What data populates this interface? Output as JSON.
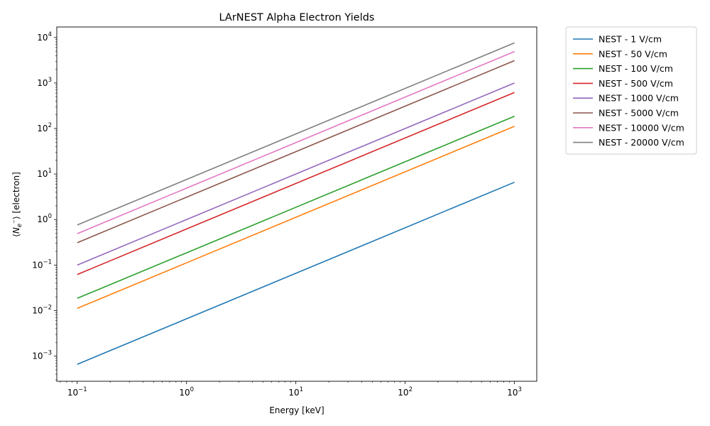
{
  "chart_data": {
    "type": "line",
    "title": "LArNEST Alpha Electron Yields",
    "xlabel": "Energy [keV]",
    "ylabel": "⟨N_e⁻⟩ [electron]",
    "ylabel_parts": {
      "open": "⟨",
      "sym": "N",
      "sub": "e",
      "sup": "−",
      "close": "⟩ [electron]"
    },
    "xscale": "log",
    "yscale": "log",
    "xlim": [
      0.065,
      1600
    ],
    "ylim": [
      0.00028,
      17000
    ],
    "x_ticks": [
      {
        "value": 0.1,
        "base": "10",
        "exp": "−1"
      },
      {
        "value": 1,
        "base": "10",
        "exp": "0"
      },
      {
        "value": 10,
        "base": "10",
        "exp": "1"
      },
      {
        "value": 100,
        "base": "10",
        "exp": "2"
      },
      {
        "value": 1000,
        "base": "10",
        "exp": "3"
      }
    ],
    "y_ticks": [
      {
        "value": 0.001,
        "base": "10",
        "exp": "−3"
      },
      {
        "value": 0.01,
        "base": "10",
        "exp": "−2"
      },
      {
        "value": 0.1,
        "base": "10",
        "exp": "−1"
      },
      {
        "value": 1,
        "base": "10",
        "exp": "0"
      },
      {
        "value": 10,
        "base": "10",
        "exp": "1"
      },
      {
        "value": 100,
        "base": "10",
        "exp": "2"
      },
      {
        "value": 1000,
        "base": "10",
        "exp": "3"
      },
      {
        "value": 10000,
        "base": "10",
        "exp": "4"
      }
    ],
    "grid": false,
    "legend_position": "outside-right-top",
    "x": [
      0.1,
      1000
    ],
    "series": [
      {
        "name": "NEST - 1 V/cm",
        "color": "#1f77b4",
        "values": [
          0.00066,
          6.6
        ]
      },
      {
        "name": "NEST - 50 V/cm",
        "color": "#ff7f0e",
        "values": [
          0.0112,
          112
        ]
      },
      {
        "name": "NEST - 100 V/cm",
        "color": "#2ca02c",
        "values": [
          0.0186,
          186
        ]
      },
      {
        "name": "NEST - 500 V/cm",
        "color": "#d62728",
        "values": [
          0.062,
          620
        ]
      },
      {
        "name": "NEST - 1000 V/cm",
        "color": "#9467bd",
        "values": [
          0.1,
          1000
        ]
      },
      {
        "name": "NEST - 5000 V/cm",
        "color": "#8c564b",
        "values": [
          0.31,
          3100
        ]
      },
      {
        "name": "NEST - 10000 V/cm",
        "color": "#e377c2",
        "values": [
          0.49,
          4900
        ]
      },
      {
        "name": "NEST - 20000 V/cm",
        "color": "#7f7f7f",
        "values": [
          0.76,
          7600
        ]
      }
    ]
  }
}
